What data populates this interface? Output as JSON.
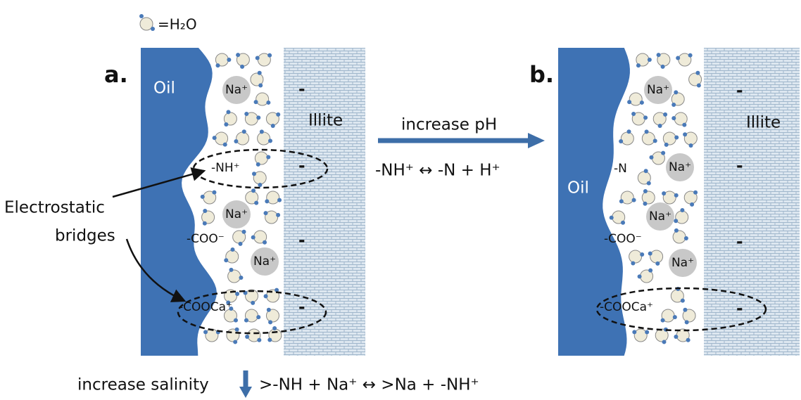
{
  "legend": "=H₂O",
  "panel_a": {
    "label": "a.",
    "oil": "Oil",
    "mineral": "Illite",
    "cation": "Na⁺",
    "surface_charge": "-",
    "groups": [
      "-NH⁺",
      "-COO⁻",
      "-COOCa⁺"
    ]
  },
  "panel_b": {
    "label": "b.",
    "oil": "Oil",
    "mineral": "Illite",
    "cation": "Na⁺",
    "surface_charge": "-",
    "groups": [
      "-N",
      "-COO⁻",
      "-COOCa⁺"
    ]
  },
  "callout": [
    "Electrostatic",
    "bridges"
  ],
  "transition": {
    "label": "increase pH",
    "reaction": "-NH⁺ ↔ -N + H⁺"
  },
  "bottom": {
    "label": "increase salinity",
    "reaction": ">-NH + Na⁺ ↔ >Na + -NH⁺"
  }
}
